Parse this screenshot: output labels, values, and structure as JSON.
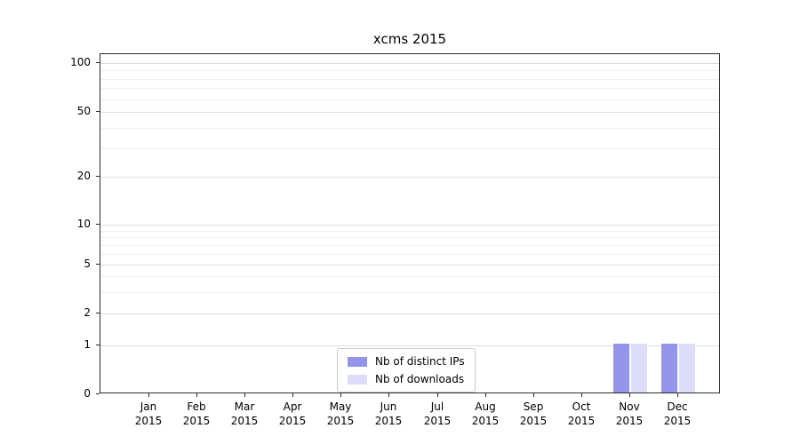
{
  "title": "xcms 2015",
  "chart_data": {
    "type": "bar",
    "title": "xcms 2015",
    "categories": [
      "Jan 2015",
      "Feb 2015",
      "Mar 2015",
      "Apr 2015",
      "May 2015",
      "Jun 2015",
      "Jul 2015",
      "Aug 2015",
      "Sep 2015",
      "Oct 2015",
      "Nov 2015",
      "Dec 2015"
    ],
    "x_tick_labels": [
      {
        "month": "Jan",
        "year": "2015"
      },
      {
        "month": "Feb",
        "year": "2015"
      },
      {
        "month": "Mar",
        "year": "2015"
      },
      {
        "month": "Apr",
        "year": "2015"
      },
      {
        "month": "May",
        "year": "2015"
      },
      {
        "month": "Jun",
        "year": "2015"
      },
      {
        "month": "Jul",
        "year": "2015"
      },
      {
        "month": "Aug",
        "year": "2015"
      },
      {
        "month": "Sep",
        "year": "2015"
      },
      {
        "month": "Oct",
        "year": "2015"
      },
      {
        "month": "Nov",
        "year": "2015"
      },
      {
        "month": "Dec",
        "year": "2015"
      }
    ],
    "series": [
      {
        "name": "Nb of distinct IPs",
        "color": "#9395eb",
        "values": [
          0,
          0,
          0,
          0,
          0,
          0,
          0,
          0,
          0,
          0,
          1,
          1
        ]
      },
      {
        "name": "Nb of downloads",
        "color": "#ddddfa",
        "values": [
          0,
          0,
          0,
          0,
          0,
          0,
          0,
          0,
          0,
          0,
          1,
          1
        ]
      }
    ],
    "yticks": [
      100,
      50,
      20,
      10,
      5,
      2,
      1,
      0
    ],
    "ylim": [
      0,
      100
    ],
    "yscale": "log-like with linear 0-1 segment",
    "minor_grid_values": [
      3,
      4,
      6,
      7,
      8,
      9,
      30,
      40,
      60,
      70,
      80,
      90
    ],
    "grid": "horizontal",
    "legend_position": "inside-bottom-center"
  },
  "legend": {
    "items": [
      {
        "label": "Nb of distinct IPs",
        "color": "#9395eb"
      },
      {
        "label": "Nb of downloads",
        "color": "#ddddfa"
      }
    ]
  },
  "colors": {
    "bar_distinct_ips": "#9395eb",
    "bar_downloads": "#ddddfa",
    "plot_border": "#2b2b2b",
    "major_grid": "#dcdcdc",
    "minor_grid": "#efefef",
    "background": "#ffffff"
  }
}
